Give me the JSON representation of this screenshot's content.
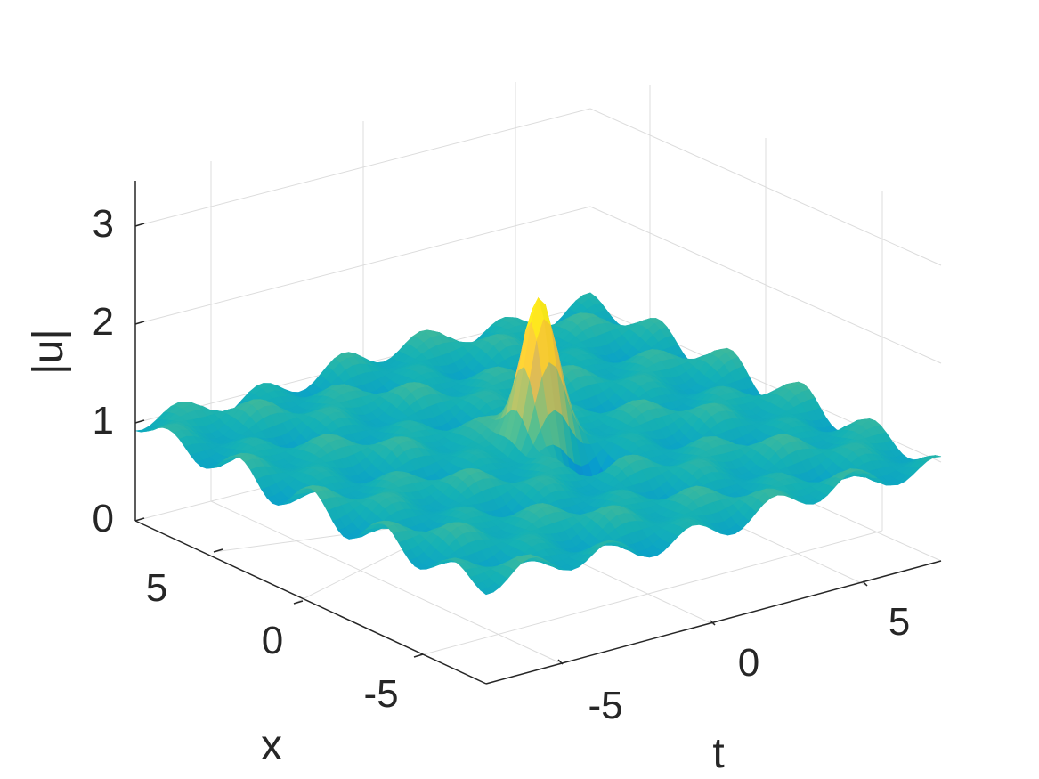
{
  "chart_data": {
    "type": "surface",
    "title": "",
    "xlabel": "t",
    "ylabel": "x",
    "zlabel": "|u|",
    "xlim": [
      -8,
      8
    ],
    "ylim": [
      -8,
      8
    ],
    "zlim": [
      0,
      3.5
    ],
    "xticks": [
      -5,
      0,
      5
    ],
    "yticks": [
      -5,
      0,
      5
    ],
    "zticks": [
      0,
      1,
      2,
      3
    ],
    "xtick_labels": [
      "-5",
      "0",
      "5"
    ],
    "ytick_labels": [
      "-5",
      "0",
      "5"
    ],
    "ztick_labels": [
      "0",
      "1",
      "2",
      "3"
    ],
    "grid": true,
    "colormap": "parula",
    "surface": {
      "background_amplitude": 1.0,
      "ripple_amplitude": 0.12,
      "peak": {
        "t": 0,
        "x": 0,
        "value": 2.5
      },
      "dip": {
        "t": 0.5,
        "x": -1.8,
        "value": 0.45
      }
    }
  }
}
